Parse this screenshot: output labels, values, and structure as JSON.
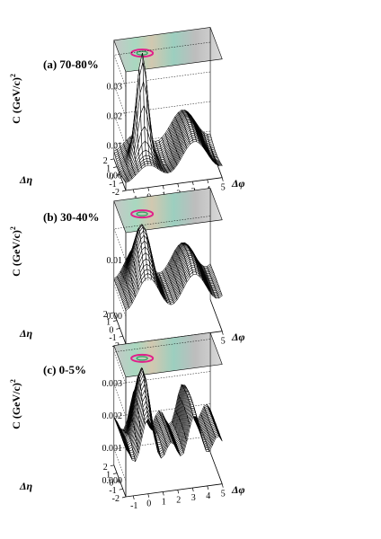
{
  "chart_data": [
    {
      "type": "surface3d",
      "panel": "(a) 70-80%",
      "zlabel": "C  (GeV/c)",
      "zlabel_sup": "2",
      "xlabel": "Δφ",
      "ylabel": "Δη",
      "x_ticks": [
        "-1",
        "0",
        "1",
        "2",
        "3",
        "4",
        "5"
      ],
      "y_ticks": [
        "2",
        "1",
        "0",
        "-1",
        "-2"
      ],
      "z_ticks": [
        "0.03",
        "0.02",
        "0.01",
        "0.00"
      ],
      "zlim": [
        -0.005,
        0.035
      ],
      "peaks": [
        {
          "dphi": 0.0,
          "deta": 0.0,
          "height": 0.031
        },
        {
          "dphi": 3.14,
          "deta": 0.0,
          "height": 0.006
        }
      ]
    },
    {
      "type": "surface3d",
      "panel": "(b) 30-40%",
      "zlabel": "C  (GeV/c)",
      "zlabel_sup": "2",
      "xlabel": "Δφ",
      "ylabel": "Δη",
      "x_ticks": [
        "-1",
        "0",
        "1",
        "2",
        "3",
        "4",
        "5"
      ],
      "y_ticks": [
        "2",
        "1",
        "0",
        "-1",
        "-2"
      ],
      "z_ticks": [
        "0.01",
        "0.00"
      ],
      "zlim": [
        -0.005,
        0.015
      ],
      "peaks": [
        {
          "dphi": 0.0,
          "deta": 0.0,
          "height": 0.013
        },
        {
          "dphi": 3.14,
          "deta": 0.0,
          "height": 0.01
        }
      ]
    },
    {
      "type": "surface3d",
      "panel": "(c) 0-5%",
      "zlabel": "C  (GeV/c)",
      "zlabel_sup": "2",
      "xlabel": "Δφ",
      "ylabel": "Δη",
      "x_ticks": [
        "-1",
        "0",
        "1",
        "2",
        "3",
        "4",
        "5"
      ],
      "y_ticks": [
        "2",
        "1",
        "0",
        "-1",
        "-2"
      ],
      "z_ticks": [
        "0.003",
        "0.002",
        "0.001",
        "0.000"
      ],
      "zlim": [
        -0.0005,
        0.0032
      ],
      "peaks": [
        {
          "dphi": 0.0,
          "deta": 0.0,
          "height": 0.0026
        },
        {
          "dphi": 3.14,
          "deta": 0.0,
          "height": 0.0016
        }
      ]
    }
  ]
}
